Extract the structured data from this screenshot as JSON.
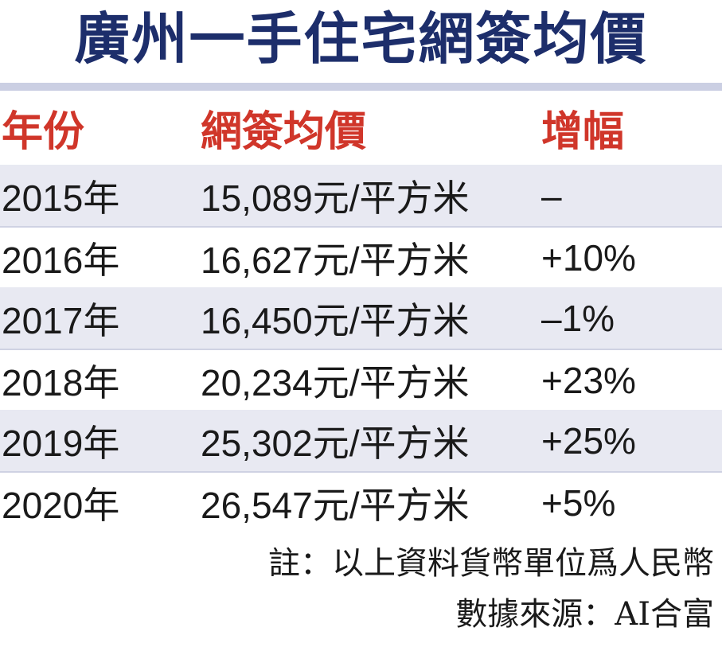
{
  "title": "廣州一手住宅網簽均價",
  "table": {
    "headers": {
      "year": "年份",
      "price": "網簽均價",
      "change": "增幅"
    },
    "rows": [
      {
        "year": "2015年",
        "price": "15,089元/平方米",
        "change": "–"
      },
      {
        "year": "2016年",
        "price": "16,627元/平方米",
        "change": "+10%"
      },
      {
        "year": "2017年",
        "price": "16,450元/平方米",
        "change": "–1%"
      },
      {
        "year": "2018年",
        "price": "20,234元/平方米",
        "change": "+23%"
      },
      {
        "year": "2019年",
        "price": "25,302元/平方米",
        "change": "+25%"
      },
      {
        "year": "2020年",
        "price": "26,547元/平方米",
        "change": "+5%"
      }
    ]
  },
  "note": "註：以上資料貨幣單位爲人民幣",
  "source": "數據來源：AI合富",
  "colors": {
    "title": "#1d2e6b",
    "header_text": "#d0362a",
    "row_shade": "#e8e9f2",
    "rule": "#cbcfe3"
  }
}
